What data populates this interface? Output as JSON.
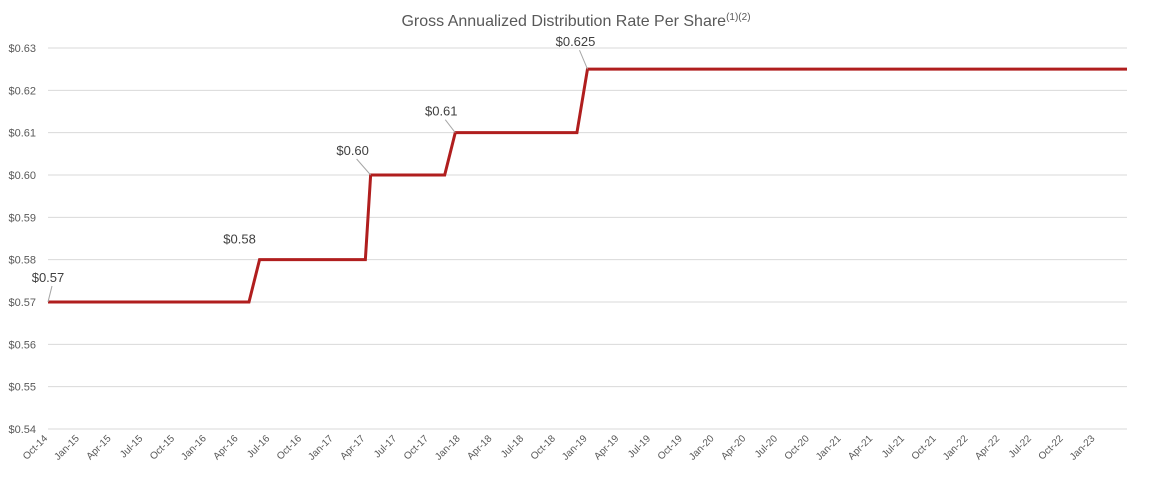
{
  "chart_data": {
    "type": "line",
    "title": "Gross Annualized Distribution Rate Per Share",
    "title_superscript": "(1)(2)",
    "xlabel": "",
    "ylabel": "",
    "ylim": [
      0.54,
      0.63
    ],
    "y_ticks": [
      0.54,
      0.55,
      0.56,
      0.57,
      0.58,
      0.59,
      0.6,
      0.61,
      0.62,
      0.63
    ],
    "y_tick_labels": [
      "$0.54",
      "$0.55",
      "$0.56",
      "$0.57",
      "$0.58",
      "$0.59",
      "$0.60",
      "$0.61",
      "$0.62",
      "$0.63"
    ],
    "x_tick_labels": [
      "Oct-14",
      "Jan-15",
      "Apr-15",
      "Jul-15",
      "Oct-15",
      "Jan-16",
      "Apr-16",
      "Jul-16",
      "Oct-16",
      "Jan-17",
      "Apr-17",
      "Jul-17",
      "Oct-17",
      "Jan-18",
      "Apr-18",
      "Jul-18",
      "Oct-18",
      "Jan-19",
      "Apr-19",
      "Jul-19",
      "Oct-19",
      "Jan-20",
      "Apr-20",
      "Jul-20",
      "Oct-20",
      "Jan-21",
      "Apr-21",
      "Jul-21",
      "Oct-21",
      "Jan-22",
      "Apr-22",
      "Jul-22",
      "Oct-22",
      "Jan-23"
    ],
    "x_start": "Oct-14",
    "x_months_total": 102,
    "grid": true,
    "legend": "none",
    "series": [
      {
        "name": "Gross Annualized Distribution Rate Per Share",
        "color": "#b01e1e",
        "points": [
          {
            "month": 0,
            "value": 0.57
          },
          {
            "month": 19,
            "value": 0.57
          },
          {
            "month": 20,
            "value": 0.58
          },
          {
            "month": 30,
            "value": 0.58
          },
          {
            "month": 30.5,
            "value": 0.6
          },
          {
            "month": 37.5,
            "value": 0.6
          },
          {
            "month": 38.5,
            "value": 0.61
          },
          {
            "month": 50,
            "value": 0.61
          },
          {
            "month": 51,
            "value": 0.625
          },
          {
            "month": 102,
            "value": 0.625
          }
        ]
      }
    ],
    "data_labels": [
      {
        "text": "$0.57",
        "month": 0,
        "value": 0.57
      },
      {
        "text": "$0.58",
        "month": 20,
        "value": 0.58
      },
      {
        "text": "$0.60",
        "month": 30.5,
        "value": 0.6
      },
      {
        "text": "$0.61",
        "month": 38.5,
        "value": 0.61
      },
      {
        "text": "$0.625",
        "month": 51,
        "value": 0.625
      }
    ]
  }
}
